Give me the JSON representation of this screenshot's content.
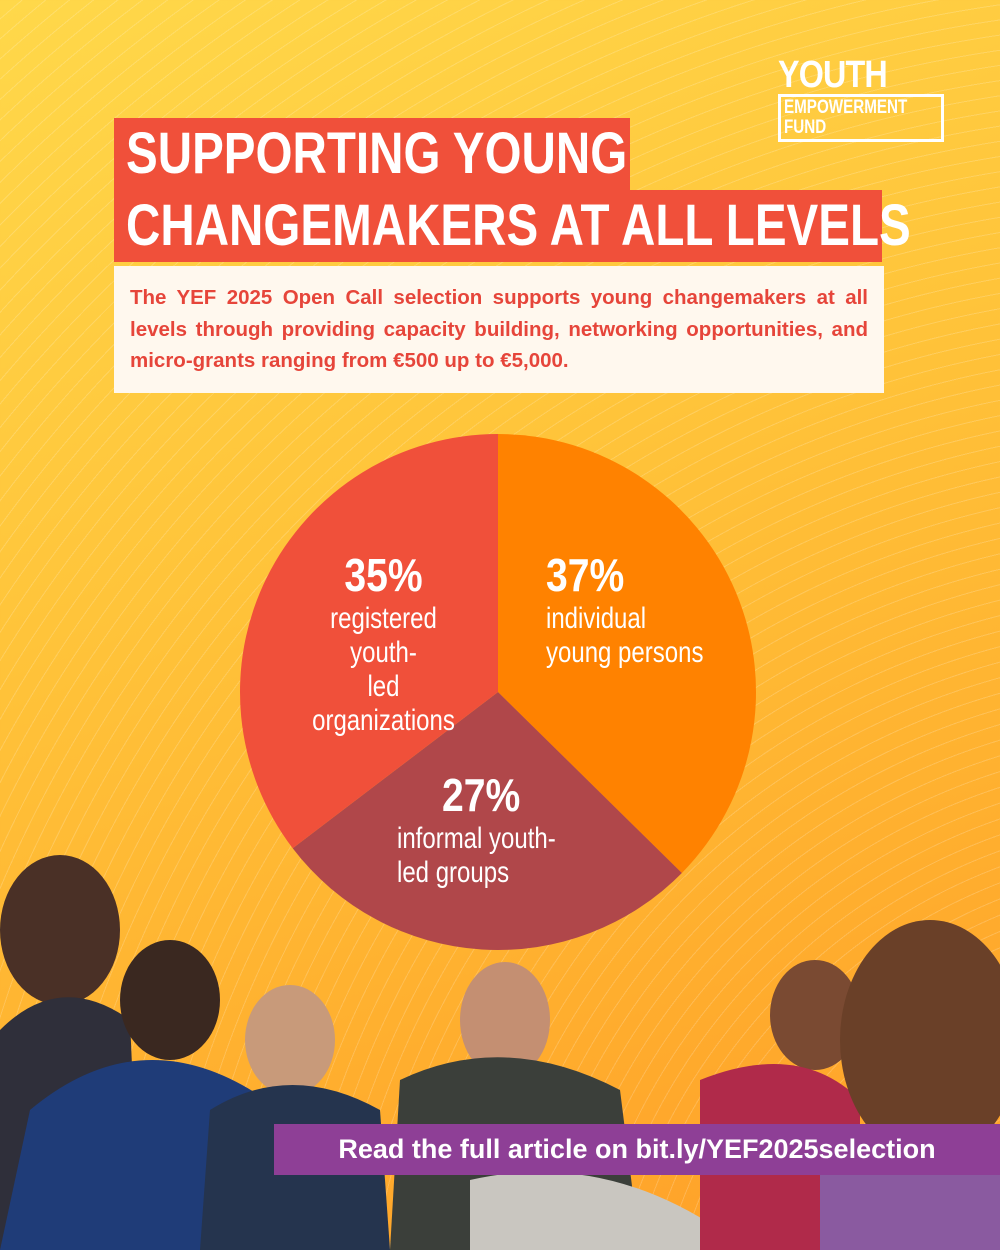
{
  "logo": {
    "line1": "YOUTH",
    "line2": "EMPOWERMENT",
    "line3": "FUND"
  },
  "title": {
    "line1": "SUPPORTING YOUNG",
    "line2": "CHANGEMAKERS AT ALL LEVELS"
  },
  "description": "The YEF 2025 Open Call selection supports young changemakers at all levels through providing capacity building, networking opportunities, and micro-grants ranging from €500 up to €5,000.",
  "chart_data": {
    "type": "pie",
    "slices": [
      {
        "label": "individual young persons",
        "value": 37,
        "display": "37%",
        "color": "#ff8200"
      },
      {
        "label": "informal youth-led groups",
        "value": 27,
        "display": "27%",
        "color": "#b0474a"
      },
      {
        "label": "registered youth-led organizations",
        "value": 35,
        "display": "35%",
        "color": "#f0503a"
      }
    ],
    "label_lines": {
      "individual": "individual\nyoung persons",
      "informal": "informal youth-\nled groups",
      "registered": "registered youth-\nled organizations"
    }
  },
  "footer": {
    "link_text": "Read the full article on bit.ly/YEF2025selection"
  }
}
